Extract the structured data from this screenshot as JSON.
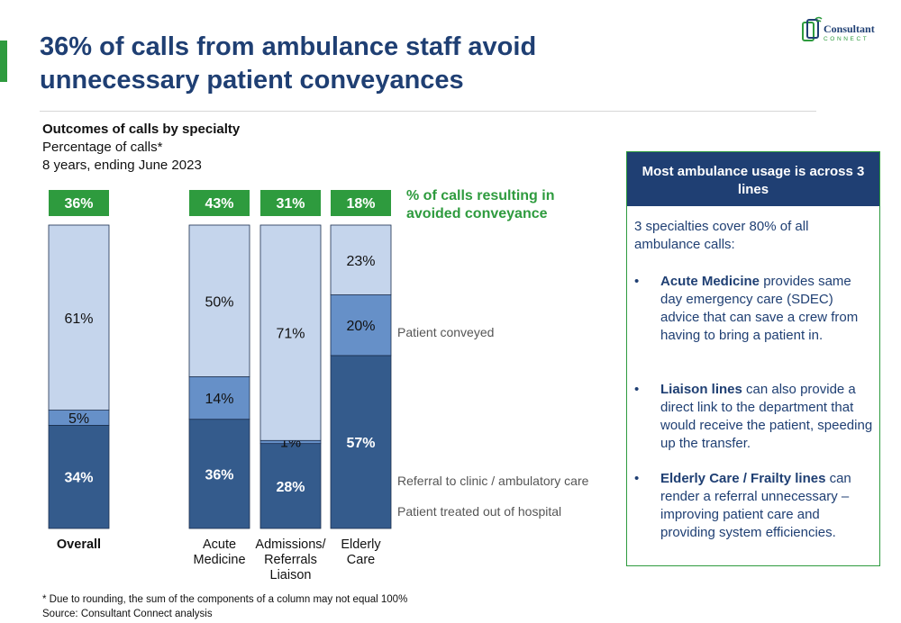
{
  "header": {
    "title_line1": "36% of calls from ambulance staff avoid",
    "title_line2": "unnecessary patient conveyances",
    "logo_name": "Consultant",
    "logo_sub": "CONNECT"
  },
  "subtitle": {
    "title": "Outcomes of calls by specialty",
    "line1": "Percentage of calls*",
    "line2": "8 years, ending June 2023"
  },
  "colors": {
    "green": "#2e9b3e",
    "navy": "#1f3f73",
    "conveyed": "#c5d5ec",
    "referral": "#6690c8",
    "treated": "#345b8c"
  },
  "chart_data": {
    "type": "bar",
    "stacked": true,
    "categories": [
      "Overall",
      "Acute Medicine",
      "Admissions/ Referrals Liaison",
      "Elderly Care"
    ],
    "series": [
      {
        "name": "Patient treated out of hospital",
        "values": [
          34,
          36,
          28,
          57
        ]
      },
      {
        "name": "Referral to clinic / ambulatory care",
        "values": [
          5,
          14,
          1,
          20
        ]
      },
      {
        "name": "Patient conveyed",
        "values": [
          61,
          50,
          71,
          23
        ]
      }
    ],
    "avoided_label": "% of calls resulting in avoided conveyance",
    "avoided_values": [
      "36%",
      "43%",
      "31%",
      "18%"
    ],
    "category_labels": [
      [
        "Overall"
      ],
      [
        "Acute",
        "Medicine"
      ],
      [
        "Admissions/",
        "Referrals",
        "Liaison"
      ],
      [
        "Elderly",
        "Care"
      ]
    ],
    "ylim": [
      0,
      100
    ],
    "legend_placement": "right"
  },
  "sidebox": {
    "title": "Most ambulance usage is across 3 lines",
    "intro": "3 specialties cover 80% of all ambulance calls:",
    "bullets": [
      {
        "marker": "•",
        "strong": "Acute Medicine",
        "text": " provides same day emergency care (SDEC) advice that can save a crew from having to bring a patient in."
      },
      {
        "marker": "•",
        "strong": "Liaison lines",
        "text": " can also provide a direct link to the department that would receive the patient, speeding up the transfer."
      },
      {
        "marker": "•",
        "strong": "Elderly Care / Frailty lines",
        "text": " can render a referral unnecessary – improving patient care and providing system efficiencies."
      }
    ]
  },
  "footnotes": {
    "note": "* Due to rounding, the sum of the components of a column may not equal 100%",
    "source": "Source: Consultant Connect analysis"
  }
}
